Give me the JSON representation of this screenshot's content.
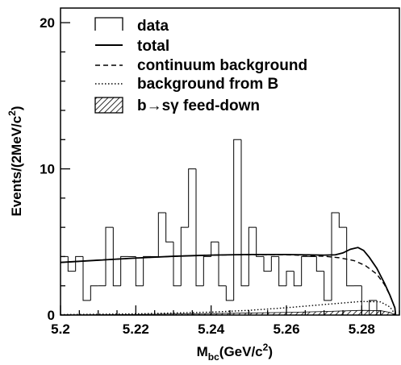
{
  "chart_data": {
    "type": "histogram",
    "xlabel": {
      "base": "M",
      "sub": "bc",
      "unit_pre": "(GeV/c",
      "unit_sup": "2",
      "unit_post": ")"
    },
    "ylabel": {
      "text": "Events/(2MeV/c",
      "sup": "2",
      "post": ")"
    },
    "xlim": [
      5.2,
      5.29
    ],
    "ylim": [
      0,
      21
    ],
    "x_ticks": [
      {
        "value": 5.2,
        "label": "5.2"
      },
      {
        "value": 5.22,
        "label": "5.22"
      },
      {
        "value": 5.24,
        "label": "5.24"
      },
      {
        "value": 5.26,
        "label": "5.26"
      },
      {
        "value": 5.28,
        "label": "5.28"
      }
    ],
    "y_ticks": [
      {
        "value": 0,
        "label": "0"
      },
      {
        "value": 10,
        "label": "10"
      },
      {
        "value": 20,
        "label": "20"
      }
    ],
    "bin_edges_start": 5.2,
    "bin_width": 0.002,
    "data_counts": [
      4,
      3,
      4,
      1,
      2,
      2,
      6,
      2,
      4,
      4,
      2,
      4,
      4,
      7,
      5,
      2,
      6,
      10,
      2,
      4,
      5,
      2,
      1,
      12,
      2,
      6,
      4,
      3,
      4,
      2,
      3,
      2,
      4,
      4,
      3,
      1,
      7,
      6,
      2,
      2,
      0,
      1,
      0,
      0,
      0
    ],
    "legend": [
      {
        "style": "histogram",
        "label": "data"
      },
      {
        "style": "solid",
        "label": "total"
      },
      {
        "style": "dashed",
        "label": "continuum background"
      },
      {
        "style": "dotted",
        "label": "background from B"
      },
      {
        "style": "hatched",
        "label_pre": "b",
        "label_arrow": "→",
        "label_post": "sγ feed-down"
      }
    ],
    "curves": {
      "continuum": {
        "x": [
          5.2,
          5.21,
          5.22,
          5.23,
          5.24,
          5.25,
          5.26,
          5.265,
          5.27,
          5.274,
          5.278,
          5.281,
          5.284,
          5.286,
          5.2875,
          5.2888,
          5.289
        ],
        "y": [
          3.6,
          3.75,
          3.9,
          4.02,
          4.1,
          4.13,
          4.12,
          4.08,
          4.02,
          3.92,
          3.72,
          3.38,
          2.8,
          2.1,
          1.35,
          0.5,
          0.0
        ]
      },
      "total": {
        "x": [
          5.2,
          5.21,
          5.22,
          5.23,
          5.24,
          5.25,
          5.26,
          5.265,
          5.27,
          5.273,
          5.275,
          5.277,
          5.279,
          5.2805,
          5.282,
          5.284,
          5.286,
          5.2875,
          5.2888,
          5.289
        ],
        "y": [
          3.6,
          3.75,
          3.9,
          4.02,
          4.1,
          4.14,
          4.14,
          4.12,
          4.1,
          4.12,
          4.25,
          4.5,
          4.62,
          4.42,
          3.95,
          3.2,
          2.2,
          1.35,
          0.5,
          0.0
        ]
      },
      "b_background": {
        "x": [
          5.2,
          5.22,
          5.24,
          5.25,
          5.26,
          5.27,
          5.28,
          5.285,
          5.2875,
          5.289
        ],
        "y": [
          0.03,
          0.08,
          0.2,
          0.32,
          0.5,
          0.72,
          0.93,
          0.9,
          0.55,
          0.0
        ]
      },
      "feed_down": {
        "x": [
          5.2,
          5.22,
          5.24,
          5.26,
          5.27,
          5.28,
          5.285,
          5.2875,
          5.289
        ],
        "y": [
          0.01,
          0.04,
          0.1,
          0.18,
          0.24,
          0.32,
          0.3,
          0.18,
          0.0
        ]
      }
    }
  }
}
